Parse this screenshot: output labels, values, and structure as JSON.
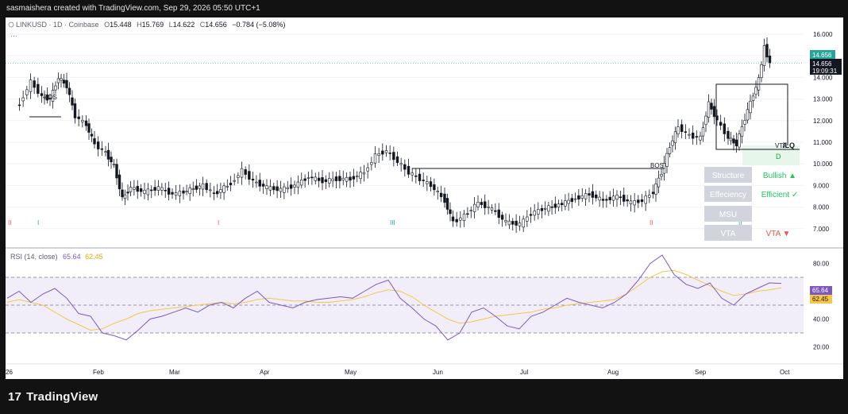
{
  "topbar": {
    "credit": "sasmaishera created with TradingView.com, Sep 29, 2026 05:50 UTC+1"
  },
  "header": {
    "symbol": "LINKUSD · 1D · Coinbase",
    "open_label": "O",
    "open": "15.448",
    "high_label": "H",
    "high": "15.769",
    "low_label": "L",
    "low": "14.622",
    "close_label": "C",
    "close": "14.656",
    "change": "−0.784 (−5.08%)",
    "ellipsis": "···"
  },
  "price_axis": {
    "last_price": "14.656",
    "last_price_dup": "14.656",
    "countdown": "19:09:31",
    "accent_green": "#26a69a",
    "accent_black": "#131722"
  },
  "rsi": {
    "label": "RSI (14, close)",
    "value": "65.64",
    "ma_value": "62.45",
    "line_color": "#7e57c2",
    "ma_color": "#f7c548"
  },
  "annotations": {
    "bos_1": "BOS",
    "bos_2": "BOS",
    "vta_box": "VTA",
    "ilq": "ILQ",
    "d": "D",
    "markers": [
      "II",
      "I",
      "I",
      "III",
      "II",
      "II"
    ]
  },
  "table": {
    "rows": [
      {
        "label": "Structure",
        "value": "Bullish ▲",
        "value_color": "#22c55e"
      },
      {
        "label": "Effeciency",
        "value": "Efficient ✓",
        "value_color": "#22c55e"
      },
      {
        "label": "MSU",
        "value": "",
        "value_color": "#22c55e"
      },
      {
        "label": "VTA",
        "value": "VTA ▼",
        "value_color": "#ef5350"
      }
    ]
  },
  "footer": {
    "brand": "TradingView",
    "brand_icon": "17"
  },
  "chart_data": [
    {
      "type": "candlestick",
      "symbol": "LINKUSD",
      "interval": "1D",
      "exchange": "Coinbase",
      "y_axis": {
        "min": 6.5,
        "max": 16.5,
        "ticks": [
          "16.000",
          "15.000",
          "14.000",
          "13.000",
          "12.000",
          "11.000",
          "10.000",
          "9.000",
          "8.000",
          "7.000"
        ]
      },
      "x_axis_ticks": [
        "26",
        "Feb",
        "Mar",
        "Apr",
        "May",
        "Jun",
        "Jul",
        "Aug",
        "Sep",
        "Oct"
      ],
      "close_series": [
        {
          "x": "2026-01-01",
          "y": 12.8
        },
        {
          "x": "2026-01-05",
          "y": 13.8
        },
        {
          "x": "2026-01-09",
          "y": 13.1
        },
        {
          "x": "2026-01-12",
          "y": 13.0
        },
        {
          "x": "2026-01-15",
          "y": 14.0
        },
        {
          "x": "2026-01-18",
          "y": 13.6
        },
        {
          "x": "2026-01-21",
          "y": 12.2
        },
        {
          "x": "2026-01-25",
          "y": 11.8
        },
        {
          "x": "2026-01-28",
          "y": 10.9
        },
        {
          "x": "2026-02-01",
          "y": 10.5
        },
        {
          "x": "2026-02-04",
          "y": 9.9
        },
        {
          "x": "2026-02-07",
          "y": 8.4
        },
        {
          "x": "2026-02-10",
          "y": 8.9
        },
        {
          "x": "2026-02-15",
          "y": 8.7
        },
        {
          "x": "2026-02-20",
          "y": 8.9
        },
        {
          "x": "2026-02-25",
          "y": 8.6
        },
        {
          "x": "2026-03-01",
          "y": 8.7
        },
        {
          "x": "2026-03-08",
          "y": 9.0
        },
        {
          "x": "2026-03-12",
          "y": 8.6
        },
        {
          "x": "2026-03-18",
          "y": 9.1
        },
        {
          "x": "2026-03-22",
          "y": 9.7
        },
        {
          "x": "2026-03-26",
          "y": 9.2
        },
        {
          "x": "2026-03-31",
          "y": 8.9
        },
        {
          "x": "2026-04-05",
          "y": 8.8
        },
        {
          "x": "2026-04-10",
          "y": 9.0
        },
        {
          "x": "2026-04-15",
          "y": 9.4
        },
        {
          "x": "2026-04-20",
          "y": 9.2
        },
        {
          "x": "2026-04-25",
          "y": 9.3
        },
        {
          "x": "2026-04-30",
          "y": 9.3
        },
        {
          "x": "2026-05-05",
          "y": 9.6
        },
        {
          "x": "2026-05-09",
          "y": 10.4
        },
        {
          "x": "2026-05-13",
          "y": 10.6
        },
        {
          "x": "2026-05-17",
          "y": 10.1
        },
        {
          "x": "2026-05-21",
          "y": 9.6
        },
        {
          "x": "2026-05-25",
          "y": 9.3
        },
        {
          "x": "2026-05-29",
          "y": 9.0
        },
        {
          "x": "2026-06-03",
          "y": 8.3
        },
        {
          "x": "2026-06-06",
          "y": 7.3
        },
        {
          "x": "2026-06-10",
          "y": 7.6
        },
        {
          "x": "2026-06-15",
          "y": 8.2
        },
        {
          "x": "2026-06-20",
          "y": 7.9
        },
        {
          "x": "2026-06-25",
          "y": 7.3
        },
        {
          "x": "2026-06-30",
          "y": 7.2
        },
        {
          "x": "2026-07-04",
          "y": 7.7
        },
        {
          "x": "2026-07-08",
          "y": 7.9
        },
        {
          "x": "2026-07-14",
          "y": 8.1
        },
        {
          "x": "2026-07-20",
          "y": 8.4
        },
        {
          "x": "2026-07-25",
          "y": 8.6
        },
        {
          "x": "2026-07-30",
          "y": 8.3
        },
        {
          "x": "2026-08-04",
          "y": 8.5
        },
        {
          "x": "2026-08-09",
          "y": 8.2
        },
        {
          "x": "2026-08-13",
          "y": 8.3
        },
        {
          "x": "2026-08-17",
          "y": 8.7
        },
        {
          "x": "2026-08-20",
          "y": 9.6
        },
        {
          "x": "2026-08-23",
          "y": 10.8
        },
        {
          "x": "2026-08-26",
          "y": 11.7
        },
        {
          "x": "2026-08-30",
          "y": 11.3
        },
        {
          "x": "2026-09-03",
          "y": 11.2
        },
        {
          "x": "2026-09-06",
          "y": 12.8
        },
        {
          "x": "2026-09-09",
          "y": 12.0
        },
        {
          "x": "2026-09-13",
          "y": 11.2
        },
        {
          "x": "2026-09-16",
          "y": 10.9
        },
        {
          "x": "2026-09-19",
          "y": 12.1
        },
        {
          "x": "2026-09-22",
          "y": 13.2
        },
        {
          "x": "2026-09-24",
          "y": 13.9
        },
        {
          "x": "2026-09-26",
          "y": 15.4
        },
        {
          "x": "2026-09-28",
          "y": 14.656
        }
      ],
      "last": {
        "open": 15.448,
        "high": 15.769,
        "low": 14.622,
        "close": 14.656,
        "change": -0.784,
        "change_pct": -5.08
      }
    },
    {
      "type": "line",
      "name": "RSI (14, close)",
      "y_axis": {
        "min": 10,
        "max": 90,
        "ticks": [
          "80.00",
          "40.00",
          "20.00"
        ],
        "bands": [
          30,
          50,
          70
        ]
      },
      "series": [
        {
          "name": "RSI",
          "values": [
            55,
            60,
            52,
            58,
            62,
            55,
            44,
            42,
            30,
            28,
            25,
            32,
            40,
            42,
            45,
            48,
            45,
            50,
            52,
            48,
            55,
            60,
            52,
            50,
            48,
            52,
            54,
            55,
            56,
            55,
            60,
            65,
            68,
            55,
            48,
            40,
            35,
            25,
            30,
            45,
            48,
            42,
            35,
            33,
            42,
            45,
            50,
            55,
            52,
            50,
            48,
            52,
            58,
            68,
            80,
            86,
            72,
            65,
            62,
            66,
            55,
            50,
            58,
            62,
            66,
            65.64
          ]
        },
        {
          "name": "RSI-based MA",
          "values": [
            52,
            54,
            52,
            50,
            45,
            40,
            36,
            32,
            33,
            37,
            40,
            44,
            46,
            47,
            48,
            49,
            50,
            51,
            52,
            51,
            52,
            54,
            55,
            54,
            53,
            53,
            52,
            52,
            53,
            54,
            56,
            59,
            61,
            60,
            56,
            50,
            45,
            40,
            37,
            38,
            40,
            42,
            43,
            44,
            45,
            47,
            48,
            50,
            51,
            52,
            53,
            54,
            58,
            64,
            70,
            74,
            75,
            72,
            68,
            64,
            60,
            57,
            58,
            60,
            61,
            62.45
          ]
        }
      ]
    }
  ]
}
